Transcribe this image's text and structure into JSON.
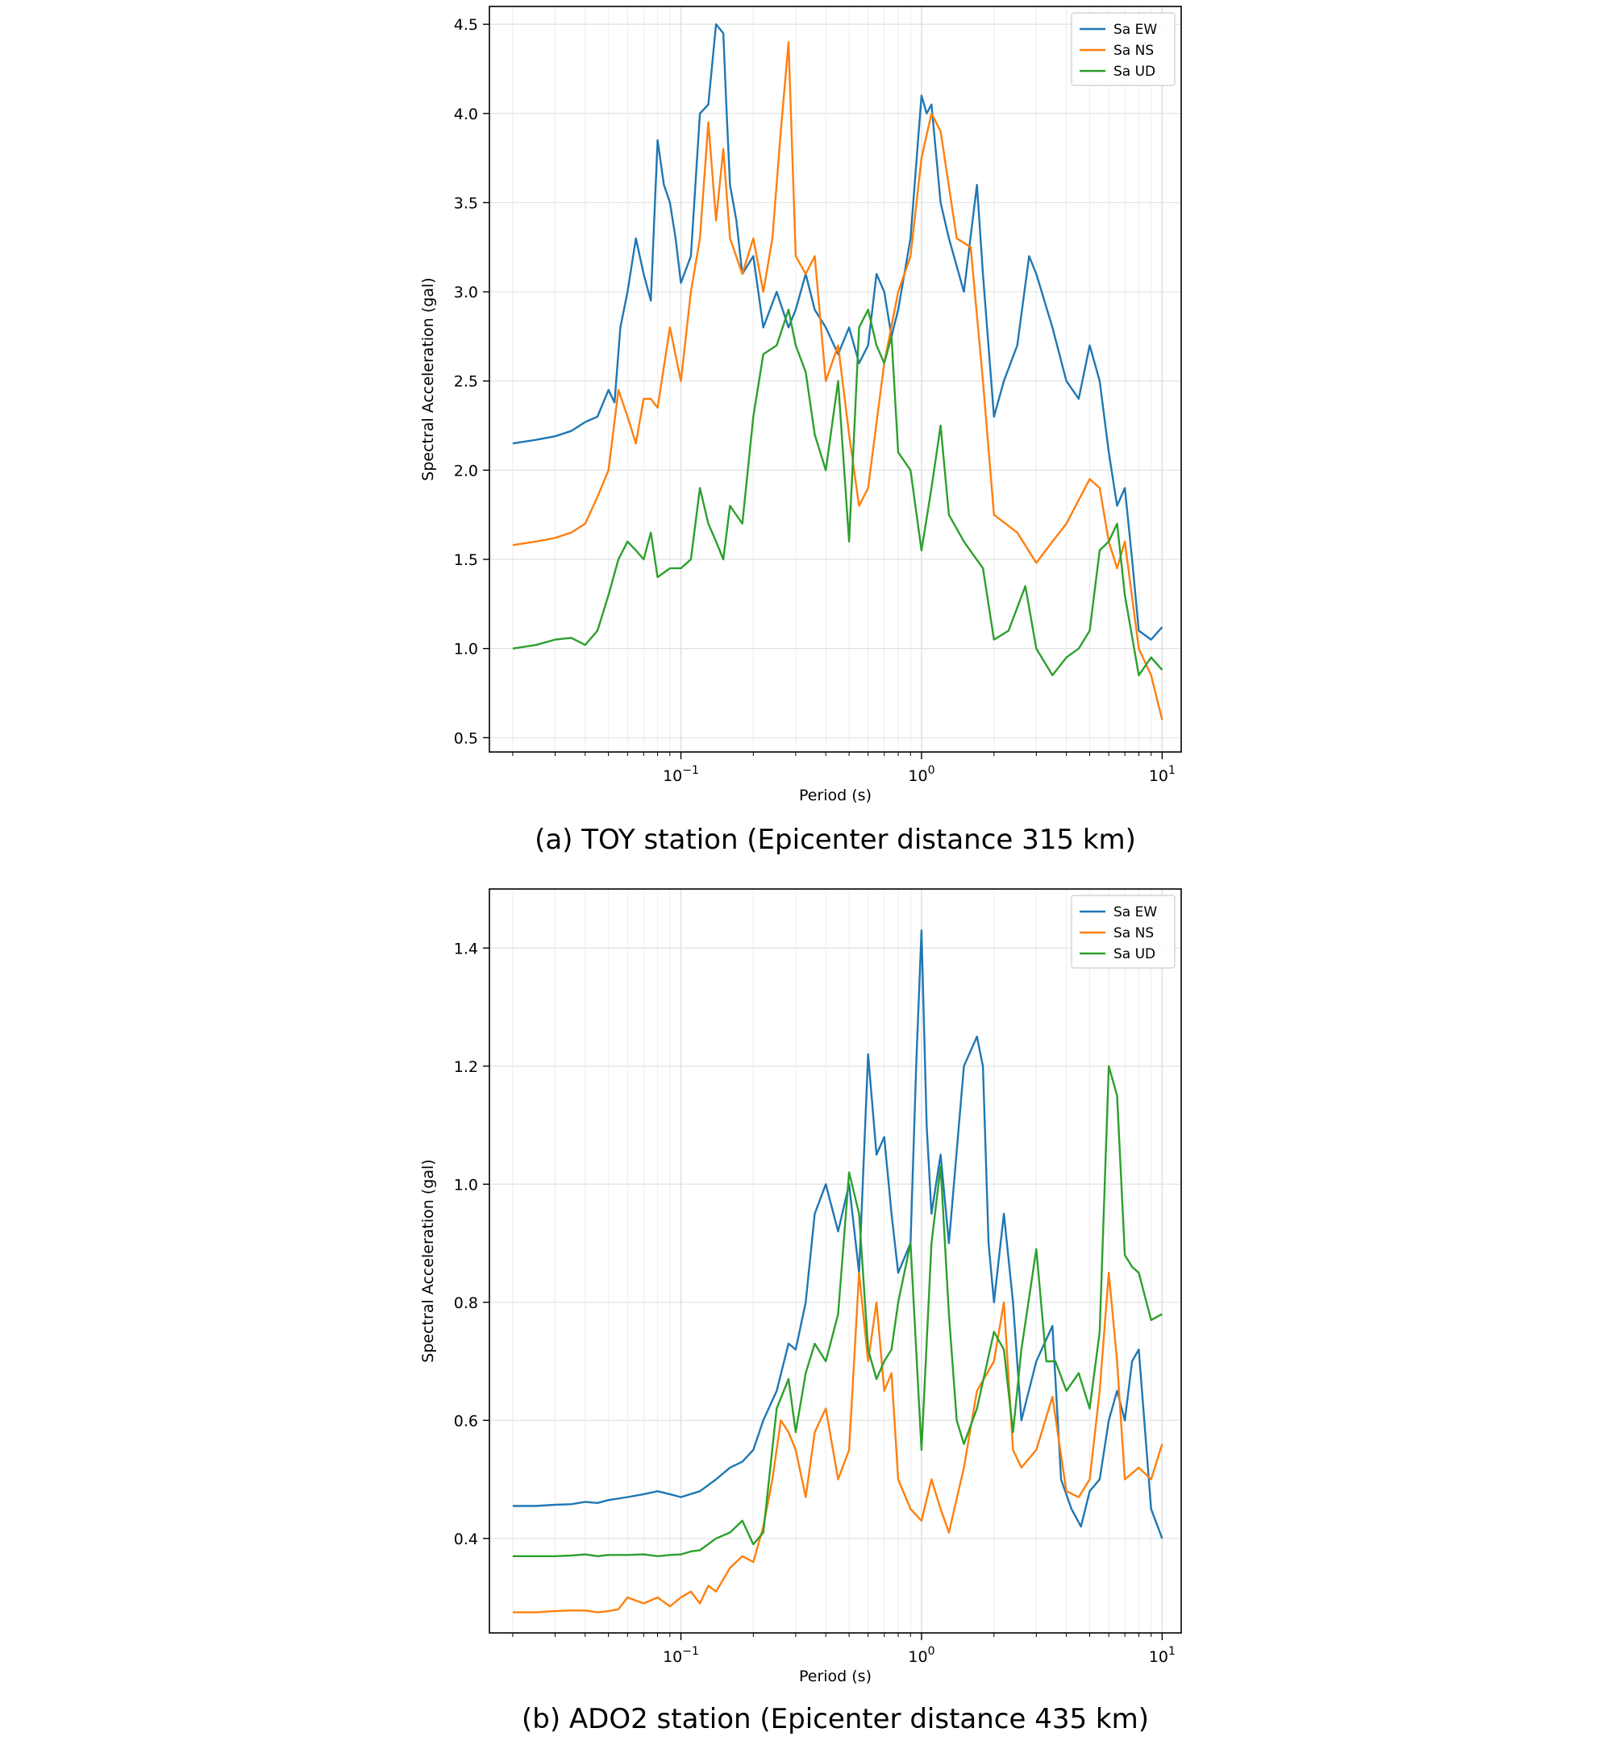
{
  "chart_data": [
    {
      "type": "line",
      "xscale": "log",
      "xlim": [
        0.016,
        12
      ],
      "ylim": [
        0.42,
        4.6
      ],
      "xlabel": "Period (s)",
      "ylabel": "Spectral Acceleration (gal)",
      "xticks": [
        {
          "base": "10",
          "exp": "−1",
          "value": 0.1
        },
        {
          "base": "10",
          "exp": "0",
          "value": 1
        },
        {
          "base": "10",
          "exp": "1",
          "value": 10
        }
      ],
      "yticks": [
        "0.5",
        "1.0",
        "1.5",
        "2.0",
        "2.5",
        "3.0",
        "3.5",
        "4.0",
        "4.5"
      ],
      "legend_position": "top-right",
      "caption": "(a) TOY station (Epicenter distance 315 km)",
      "series": [
        {
          "name": "Sa EW",
          "color": "#1f77b4",
          "x": [
            0.02,
            0.025,
            0.03,
            0.035,
            0.04,
            0.045,
            0.05,
            0.053,
            0.056,
            0.06,
            0.065,
            0.07,
            0.075,
            0.08,
            0.085,
            0.09,
            0.095,
            0.1,
            0.11,
            0.12,
            0.13,
            0.14,
            0.15,
            0.155,
            0.16,
            0.17,
            0.18,
            0.2,
            0.22,
            0.25,
            0.28,
            0.3,
            0.33,
            0.36,
            0.4,
            0.45,
            0.5,
            0.55,
            0.6,
            0.65,
            0.7,
            0.75,
            0.8,
            0.9,
            1.0,
            1.05,
            1.1,
            1.2,
            1.3,
            1.5,
            1.7,
            1.8,
            2.0,
            2.2,
            2.5,
            2.8,
            3.0,
            3.5,
            4.0,
            4.5,
            5.0,
            5.5,
            6.0,
            6.5,
            7.0,
            7.5,
            8.0,
            9.0,
            10.0
          ],
          "y": [
            2.15,
            2.17,
            2.19,
            2.22,
            2.27,
            2.3,
            2.45,
            2.38,
            2.8,
            3.0,
            3.3,
            3.1,
            2.95,
            3.85,
            3.6,
            3.5,
            3.3,
            3.05,
            3.2,
            4.0,
            4.05,
            4.5,
            4.45,
            4.0,
            3.6,
            3.4,
            3.1,
            3.2,
            2.8,
            3.0,
            2.8,
            2.9,
            3.1,
            2.9,
            2.8,
            2.65,
            2.8,
            2.6,
            2.7,
            3.1,
            3.0,
            2.75,
            2.9,
            3.3,
            4.1,
            4.0,
            4.05,
            3.5,
            3.3,
            3.0,
            3.6,
            3.1,
            2.3,
            2.5,
            2.7,
            3.2,
            3.1,
            2.8,
            2.5,
            2.4,
            2.7,
            2.5,
            2.1,
            1.8,
            1.9,
            1.5,
            1.1,
            1.05,
            1.12
          ]
        },
        {
          "name": "Sa NS",
          "color": "#ff7f0e",
          "x": [
            0.02,
            0.025,
            0.03,
            0.035,
            0.04,
            0.045,
            0.05,
            0.055,
            0.06,
            0.065,
            0.07,
            0.075,
            0.08,
            0.09,
            0.1,
            0.11,
            0.12,
            0.13,
            0.14,
            0.15,
            0.16,
            0.18,
            0.2,
            0.22,
            0.24,
            0.26,
            0.28,
            0.3,
            0.33,
            0.36,
            0.4,
            0.45,
            0.5,
            0.55,
            0.6,
            0.7,
            0.8,
            0.9,
            1.0,
            1.1,
            1.2,
            1.4,
            1.6,
            1.8,
            2.0,
            2.5,
            3.0,
            3.5,
            4.0,
            5.0,
            5.5,
            6.0,
            6.5,
            7.0,
            8.0,
            9.0,
            10.0
          ],
          "y": [
            1.58,
            1.6,
            1.62,
            1.65,
            1.7,
            1.85,
            2.0,
            2.45,
            2.3,
            2.15,
            2.4,
            2.4,
            2.35,
            2.8,
            2.5,
            3.0,
            3.3,
            3.95,
            3.4,
            3.8,
            3.3,
            3.1,
            3.3,
            3.0,
            3.3,
            3.9,
            4.4,
            3.2,
            3.1,
            3.2,
            2.5,
            2.7,
            2.2,
            1.8,
            1.9,
            2.6,
            3.0,
            3.2,
            3.75,
            4.0,
            3.9,
            3.3,
            3.25,
            2.5,
            1.75,
            1.65,
            1.48,
            1.6,
            1.7,
            1.95,
            1.9,
            1.6,
            1.45,
            1.6,
            1.0,
            0.85,
            0.6
          ]
        },
        {
          "name": "Sa UD",
          "color": "#2ca02c",
          "x": [
            0.02,
            0.025,
            0.03,
            0.035,
            0.04,
            0.045,
            0.05,
            0.055,
            0.06,
            0.065,
            0.07,
            0.075,
            0.08,
            0.09,
            0.1,
            0.11,
            0.12,
            0.13,
            0.14,
            0.15,
            0.16,
            0.18,
            0.2,
            0.22,
            0.25,
            0.28,
            0.3,
            0.33,
            0.36,
            0.4,
            0.45,
            0.5,
            0.55,
            0.6,
            0.65,
            0.7,
            0.75,
            0.8,
            0.9,
            1.0,
            1.1,
            1.2,
            1.3,
            1.5,
            1.8,
            2.0,
            2.3,
            2.7,
            3.0,
            3.5,
            4.0,
            4.5,
            5.0,
            5.5,
            6.0,
            6.5,
            7.0,
            8.0,
            9.0,
            10.0
          ],
          "y": [
            1.0,
            1.02,
            1.05,
            1.06,
            1.02,
            1.1,
            1.3,
            1.5,
            1.6,
            1.55,
            1.5,
            1.65,
            1.4,
            1.45,
            1.45,
            1.5,
            1.9,
            1.7,
            1.6,
            1.5,
            1.8,
            1.7,
            2.3,
            2.65,
            2.7,
            2.9,
            2.7,
            2.55,
            2.2,
            2.0,
            2.5,
            1.6,
            2.8,
            2.9,
            2.7,
            2.6,
            2.75,
            2.1,
            2.0,
            1.55,
            1.9,
            2.25,
            1.75,
            1.6,
            1.45,
            1.05,
            1.1,
            1.35,
            1.0,
            0.85,
            0.95,
            1.0,
            1.1,
            1.55,
            1.6,
            1.7,
            1.3,
            0.85,
            0.95,
            0.88
          ]
        }
      ]
    },
    {
      "type": "line",
      "xscale": "log",
      "xlim": [
        0.016,
        12
      ],
      "ylim": [
        0.24,
        1.5
      ],
      "xlabel": "Period (s)",
      "ylabel": "Spectral Acceleration (gal)",
      "xticks": [
        {
          "base": "10",
          "exp": "−1",
          "value": 0.1
        },
        {
          "base": "10",
          "exp": "0",
          "value": 1
        },
        {
          "base": "10",
          "exp": "1",
          "value": 10
        }
      ],
      "yticks": [
        "0.4",
        "0.6",
        "0.8",
        "1.0",
        "1.2",
        "1.4"
      ],
      "legend_position": "top-right",
      "caption": "(b) ADO2 station (Epicenter distance 435 km)",
      "series": [
        {
          "name": "Sa EW",
          "color": "#1f77b4",
          "x": [
            0.02,
            0.025,
            0.03,
            0.035,
            0.04,
            0.045,
            0.05,
            0.06,
            0.07,
            0.08,
            0.09,
            0.1,
            0.12,
            0.14,
            0.16,
            0.18,
            0.2,
            0.22,
            0.25,
            0.28,
            0.3,
            0.33,
            0.36,
            0.4,
            0.45,
            0.5,
            0.55,
            0.6,
            0.65,
            0.7,
            0.75,
            0.8,
            0.9,
            0.95,
            1.0,
            1.05,
            1.1,
            1.2,
            1.3,
            1.5,
            1.7,
            1.8,
            1.9,
            2.0,
            2.2,
            2.4,
            2.6,
            3.0,
            3.5,
            3.8,
            4.2,
            4.6,
            5.0,
            5.5,
            6.0,
            6.5,
            7.0,
            7.5,
            8.0,
            9.0,
            10.0
          ],
          "y": [
            0.455,
            0.455,
            0.457,
            0.458,
            0.462,
            0.46,
            0.465,
            0.47,
            0.475,
            0.48,
            0.475,
            0.47,
            0.48,
            0.5,
            0.52,
            0.53,
            0.55,
            0.6,
            0.65,
            0.73,
            0.72,
            0.8,
            0.95,
            1.0,
            0.92,
            1.0,
            0.85,
            1.22,
            1.05,
            1.08,
            0.95,
            0.85,
            0.9,
            1.2,
            1.43,
            1.1,
            0.95,
            1.05,
            0.9,
            1.2,
            1.25,
            1.2,
            0.9,
            0.8,
            0.95,
            0.8,
            0.6,
            0.7,
            0.76,
            0.5,
            0.45,
            0.42,
            0.48,
            0.5,
            0.6,
            0.65,
            0.6,
            0.7,
            0.72,
            0.45,
            0.4
          ]
        },
        {
          "name": "Sa NS",
          "color": "#ff7f0e",
          "x": [
            0.02,
            0.025,
            0.03,
            0.035,
            0.04,
            0.045,
            0.05,
            0.055,
            0.06,
            0.07,
            0.08,
            0.09,
            0.1,
            0.11,
            0.12,
            0.13,
            0.14,
            0.16,
            0.18,
            0.2,
            0.22,
            0.24,
            0.26,
            0.28,
            0.3,
            0.33,
            0.36,
            0.4,
            0.45,
            0.5,
            0.55,
            0.6,
            0.65,
            0.7,
            0.75,
            0.8,
            0.9,
            1.0,
            1.1,
            1.2,
            1.3,
            1.5,
            1.7,
            2.0,
            2.2,
            2.4,
            2.6,
            3.0,
            3.5,
            4.0,
            4.5,
            5.0,
            5.5,
            6.0,
            6.5,
            7.0,
            8.0,
            9.0,
            10.0
          ],
          "y": [
            0.275,
            0.275,
            0.277,
            0.278,
            0.278,
            0.275,
            0.277,
            0.28,
            0.3,
            0.29,
            0.3,
            0.285,
            0.3,
            0.31,
            0.29,
            0.32,
            0.31,
            0.35,
            0.37,
            0.36,
            0.42,
            0.5,
            0.6,
            0.58,
            0.55,
            0.47,
            0.58,
            0.62,
            0.5,
            0.55,
            0.85,
            0.7,
            0.8,
            0.65,
            0.68,
            0.5,
            0.45,
            0.43,
            0.5,
            0.45,
            0.41,
            0.52,
            0.65,
            0.7,
            0.8,
            0.55,
            0.52,
            0.55,
            0.64,
            0.48,
            0.47,
            0.5,
            0.65,
            0.85,
            0.7,
            0.5,
            0.52,
            0.5,
            0.56
          ]
        },
        {
          "name": "Sa UD",
          "color": "#2ca02c",
          "x": [
            0.02,
            0.025,
            0.03,
            0.035,
            0.04,
            0.045,
            0.05,
            0.06,
            0.07,
            0.08,
            0.09,
            0.1,
            0.11,
            0.12,
            0.14,
            0.16,
            0.18,
            0.2,
            0.22,
            0.25,
            0.28,
            0.3,
            0.33,
            0.36,
            0.4,
            0.45,
            0.5,
            0.55,
            0.6,
            0.65,
            0.7,
            0.75,
            0.8,
            0.9,
            1.0,
            1.1,
            1.2,
            1.3,
            1.4,
            1.5,
            1.7,
            2.0,
            2.2,
            2.4,
            2.6,
            3.0,
            3.3,
            3.6,
            4.0,
            4.5,
            5.0,
            5.5,
            6.0,
            6.5,
            7.0,
            7.5,
            8.0,
            9.0,
            10.0
          ],
          "y": [
            0.37,
            0.37,
            0.37,
            0.371,
            0.373,
            0.37,
            0.372,
            0.372,
            0.373,
            0.37,
            0.372,
            0.373,
            0.378,
            0.38,
            0.4,
            0.41,
            0.43,
            0.39,
            0.41,
            0.62,
            0.67,
            0.58,
            0.68,
            0.73,
            0.7,
            0.78,
            1.02,
            0.95,
            0.72,
            0.67,
            0.7,
            0.72,
            0.8,
            0.9,
            0.55,
            0.9,
            1.03,
            0.78,
            0.6,
            0.56,
            0.62,
            0.75,
            0.72,
            0.58,
            0.72,
            0.89,
            0.7,
            0.7,
            0.65,
            0.68,
            0.62,
            0.75,
            1.2,
            1.15,
            0.88,
            0.86,
            0.85,
            0.77,
            0.78
          ]
        }
      ]
    }
  ]
}
